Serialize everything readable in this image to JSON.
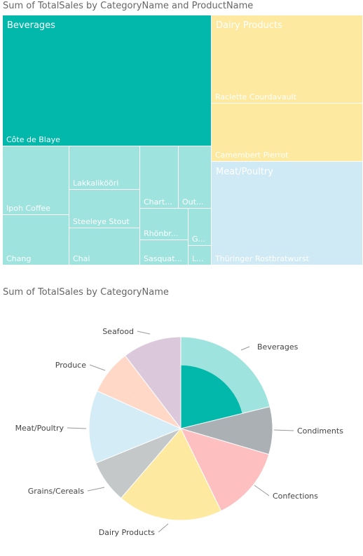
{
  "chart_data": [
    {
      "type": "treemap",
      "title": "Sum of TotalSales by CategoryName and ProductName",
      "categories": [
        {
          "name": "Beverages",
          "color": "#01b8aa",
          "label_color": "#01b8aa",
          "products": [
            {
              "name": "Côte de Blaye",
              "label": "Côte de Blaye",
              "value": 141397
            },
            {
              "name": "Ipoh Coffee",
              "label": "Ipoh Coffee",
              "value": 23527
            },
            {
              "name": "Chang",
              "label": "Chang",
              "value": 16355
            },
            {
              "name": "Lakkalikööri",
              "label": "Lakkalikööri",
              "value": 15760
            },
            {
              "name": "Steeleye Stout",
              "label": "Steeleye Stout",
              "value": 13644
            },
            {
              "name": "Chai",
              "label": "Chai",
              "value": 12789
            },
            {
              "name": "Chartreuse verte",
              "label": "Chart...",
              "value": 12295
            },
            {
              "name": "Outback Lager",
              "label": "Out...",
              "value": 10673
            },
            {
              "name": "Rhönbräu Klosterbier",
              "label": "Rhönbr...",
              "value": 8650
            },
            {
              "name": "Sasquatch Ale",
              "label": "Sasquat...",
              "value": 6350
            },
            {
              "name": "Guaraná Fantástica",
              "label": "G...",
              "value": 4504
            },
            {
              "name": "Laughing Lumberjack Lager",
              "label": "L...",
              "value": 2396
            }
          ]
        },
        {
          "name": "Dairy Products",
          "color": "#fde9a0",
          "products": [
            {
              "name": "Raclette Courdavault",
              "label": "Raclette Courdavault",
              "value": 71156
            },
            {
              "name": "Camembert Pierrot",
              "label": "Camembert Pierrot",
              "value": 46825
            }
          ]
        },
        {
          "name": "Meat/Poultry",
          "color": "#cfeaf4",
          "products": [
            {
              "name": "Thüringer Rostbratwurst",
              "label": "Thüringer Rostbratwurst",
              "value": 80368
            }
          ]
        }
      ]
    },
    {
      "type": "pie",
      "title": "Sum of TotalSales by CategoryName",
      "slices": [
        {
          "label": "Beverages",
          "value": 267868,
          "color": "#9ee3dd",
          "highlight": 0.474,
          "highlight_color": "#01b8aa"
        },
        {
          "label": "Condiments",
          "value": 106047,
          "color": "#aab0b3"
        },
        {
          "label": "Confections",
          "value": 167357,
          "color": "#fdbfbf"
        },
        {
          "label": "Dairy Products",
          "value": 234507,
          "color": "#fde9a0"
        },
        {
          "label": "Grains/Cereals",
          "value": 95745,
          "color": "#c4c8c9"
        },
        {
          "label": "Meat/Poultry",
          "value": 163022,
          "color": "#d3ecf6"
        },
        {
          "label": "Produce",
          "value": 99985,
          "color": "#ffd8c8"
        },
        {
          "label": "Seafood",
          "value": 131261,
          "color": "#dcc8db"
        }
      ]
    }
  ]
}
